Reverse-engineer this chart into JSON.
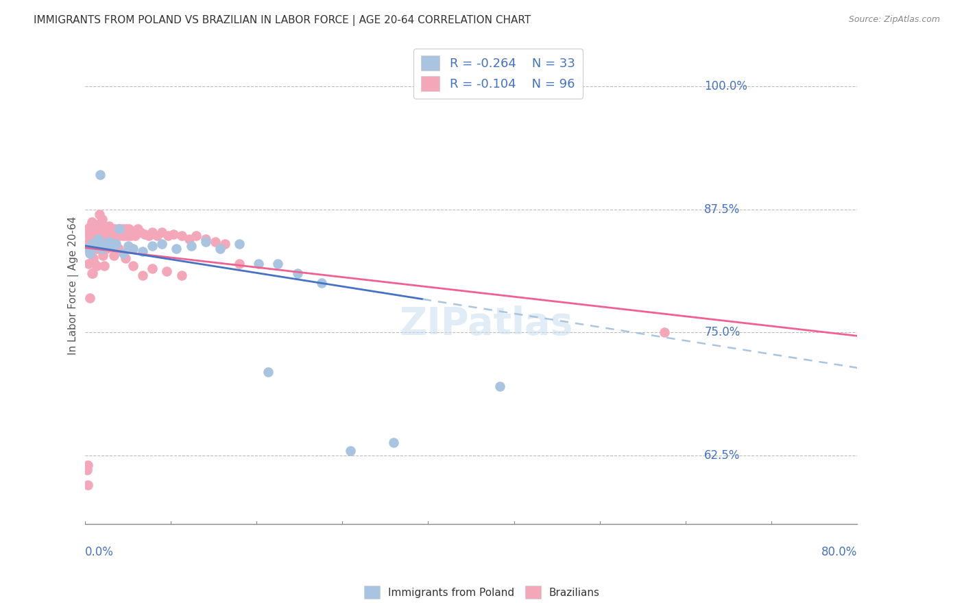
{
  "title": "IMMIGRANTS FROM POLAND VS BRAZILIAN IN LABOR FORCE | AGE 20-64 CORRELATION CHART",
  "source": "Source: ZipAtlas.com",
  "ylabel": "In Labor Force | Age 20-64",
  "xlim": [
    0.0,
    0.8
  ],
  "ylim": [
    0.555,
    1.04
  ],
  "color_poland": "#a8c4e0",
  "color_brazil": "#f4a7b9",
  "line_color_poland": "#4472c4",
  "line_color_brazil": "#f06090",
  "line_color_dashed": "#a8c4e0",
  "poland_x": [
    0.003,
    0.005,
    0.007,
    0.009,
    0.012,
    0.014,
    0.016,
    0.018,
    0.02,
    0.022,
    0.025,
    0.028,
    0.032,
    0.036,
    0.04,
    0.045,
    0.05,
    0.06,
    0.07,
    0.08,
    0.095,
    0.11,
    0.125,
    0.14,
    0.16,
    0.18,
    0.2,
    0.22,
    0.245,
    0.275,
    0.32,
    0.19,
    0.43
  ],
  "poland_y": [
    0.835,
    0.83,
    0.84,
    0.836,
    0.838,
    0.845,
    0.91,
    0.835,
    0.84,
    0.838,
    0.842,
    0.838,
    0.84,
    0.855,
    0.83,
    0.838,
    0.835,
    0.832,
    0.838,
    0.84,
    0.835,
    0.838,
    0.842,
    0.835,
    0.84,
    0.82,
    0.82,
    0.81,
    0.8,
    0.63,
    0.638,
    0.71,
    0.695
  ],
  "brazil_x": [
    0.002,
    0.003,
    0.004,
    0.005,
    0.006,
    0.007,
    0.008,
    0.009,
    0.01,
    0.011,
    0.012,
    0.013,
    0.014,
    0.015,
    0.016,
    0.017,
    0.018,
    0.019,
    0.02,
    0.021,
    0.022,
    0.023,
    0.024,
    0.025,
    0.026,
    0.027,
    0.028,
    0.029,
    0.03,
    0.031,
    0.032,
    0.033,
    0.034,
    0.035,
    0.036,
    0.037,
    0.038,
    0.039,
    0.04,
    0.041,
    0.042,
    0.043,
    0.044,
    0.045,
    0.046,
    0.047,
    0.048,
    0.05,
    0.052,
    0.055,
    0.058,
    0.062,
    0.066,
    0.07,
    0.075,
    0.08,
    0.086,
    0.092,
    0.1,
    0.108,
    0.115,
    0.125,
    0.135,
    0.145,
    0.01,
    0.012,
    0.015,
    0.018,
    0.008,
    0.006,
    0.004,
    0.003,
    0.007,
    0.009,
    0.011,
    0.013,
    0.016,
    0.019,
    0.022,
    0.026,
    0.03,
    0.035,
    0.042,
    0.05,
    0.06,
    0.07,
    0.085,
    0.1,
    0.005,
    0.008,
    0.012,
    0.02,
    0.6,
    0.16,
    0.002,
    0.003
  ],
  "brazil_y": [
    0.84,
    0.855,
    0.85,
    0.845,
    0.858,
    0.862,
    0.855,
    0.848,
    0.852,
    0.858,
    0.855,
    0.848,
    0.852,
    0.86,
    0.858,
    0.855,
    0.85,
    0.848,
    0.855,
    0.858,
    0.852,
    0.848,
    0.855,
    0.858,
    0.85,
    0.848,
    0.855,
    0.852,
    0.848,
    0.855,
    0.852,
    0.848,
    0.855,
    0.852,
    0.848,
    0.855,
    0.852,
    0.848,
    0.855,
    0.85,
    0.848,
    0.855,
    0.85,
    0.848,
    0.855,
    0.852,
    0.848,
    0.852,
    0.848,
    0.855,
    0.852,
    0.85,
    0.848,
    0.852,
    0.848,
    0.852,
    0.848,
    0.85,
    0.848,
    0.845,
    0.848,
    0.845,
    0.842,
    0.84,
    0.82,
    0.835,
    0.87,
    0.865,
    0.84,
    0.83,
    0.82,
    0.595,
    0.81,
    0.825,
    0.85,
    0.835,
    0.84,
    0.828,
    0.835,
    0.84,
    0.828,
    0.835,
    0.825,
    0.818,
    0.808,
    0.815,
    0.812,
    0.808,
    0.785,
    0.81,
    0.818,
    0.818,
    0.75,
    0.82,
    0.61,
    0.615
  ],
  "ytick_vals": [
    0.625,
    0.75,
    0.875,
    1.0
  ],
  "ytick_labels": [
    "62.5%",
    "75.0%",
    "87.5%",
    "100.0%"
  ]
}
